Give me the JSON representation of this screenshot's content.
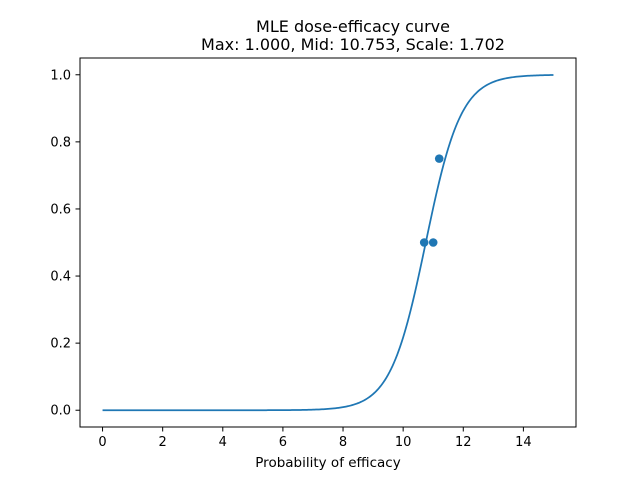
{
  "chart_data": {
    "type": "line",
    "title": "MLE dose-efficacy curve",
    "subtitle": "Max: 1.000, Mid: 10.753, Scale: 1.702",
    "xlabel": "Probability of efficacy",
    "ylabel": "",
    "xlim": [
      -0.75,
      15.75
    ],
    "ylim": [
      -0.05,
      1.05
    ],
    "xticks": [
      0,
      2,
      4,
      6,
      8,
      10,
      12,
      14
    ],
    "xtick_labels": [
      "0",
      "2",
      "4",
      "6",
      "8",
      "10",
      "12",
      "14"
    ],
    "yticks": [
      0.0,
      0.2,
      0.4,
      0.6,
      0.8,
      1.0
    ],
    "ytick_labels": [
      "0.0",
      "0.2",
      "0.4",
      "0.6",
      "0.8",
      "1.0"
    ],
    "grid": false,
    "color": "#1f77b4",
    "curve": {
      "model": "logistic",
      "max": 1.0,
      "mid": 10.753,
      "scale": 1.702,
      "x_range": [
        0,
        15
      ]
    },
    "points": [
      {
        "x": 10.7,
        "y": 0.5
      },
      {
        "x": 11.0,
        "y": 0.5
      },
      {
        "x": 11.2,
        "y": 0.75
      }
    ]
  }
}
